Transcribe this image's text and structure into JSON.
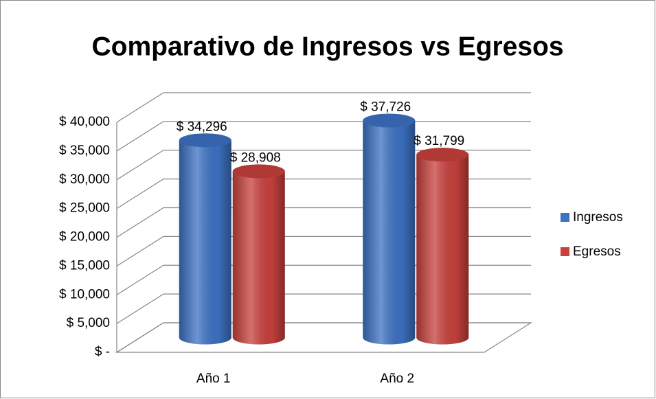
{
  "chart_data": {
    "type": "bar3d",
    "title": "Comparativo de Ingresos vs Egresos",
    "categories": [
      "Año 1",
      "Año 2"
    ],
    "series": [
      {
        "name": "Ingresos",
        "color": "#3d72c4",
        "values": [
          34296,
          37726
        ],
        "value_labels": [
          "$ 34,296",
          "$ 37,726"
        ]
      },
      {
        "name": "Egresos",
        "color": "#c9413d",
        "values": [
          28908,
          31799
        ],
        "value_labels": [
          "$ 28,908",
          "$ 31,799"
        ]
      }
    ],
    "ylim": [
      0,
      40000
    ],
    "yticks": [
      {
        "value": 0,
        "label": "$ -"
      },
      {
        "value": 5000,
        "label": "$ 5,000"
      },
      {
        "value": 10000,
        "label": "$ 10,000"
      },
      {
        "value": 15000,
        "label": "$ 15,000"
      },
      {
        "value": 20000,
        "label": "$ 20,000"
      },
      {
        "value": 25000,
        "label": "$ 25,000"
      },
      {
        "value": 30000,
        "label": "$ 30,000"
      },
      {
        "value": 35000,
        "label": "$ 35,000"
      },
      {
        "value": 40000,
        "label": "$ 40,000"
      }
    ],
    "grid": true,
    "legend": "right"
  }
}
